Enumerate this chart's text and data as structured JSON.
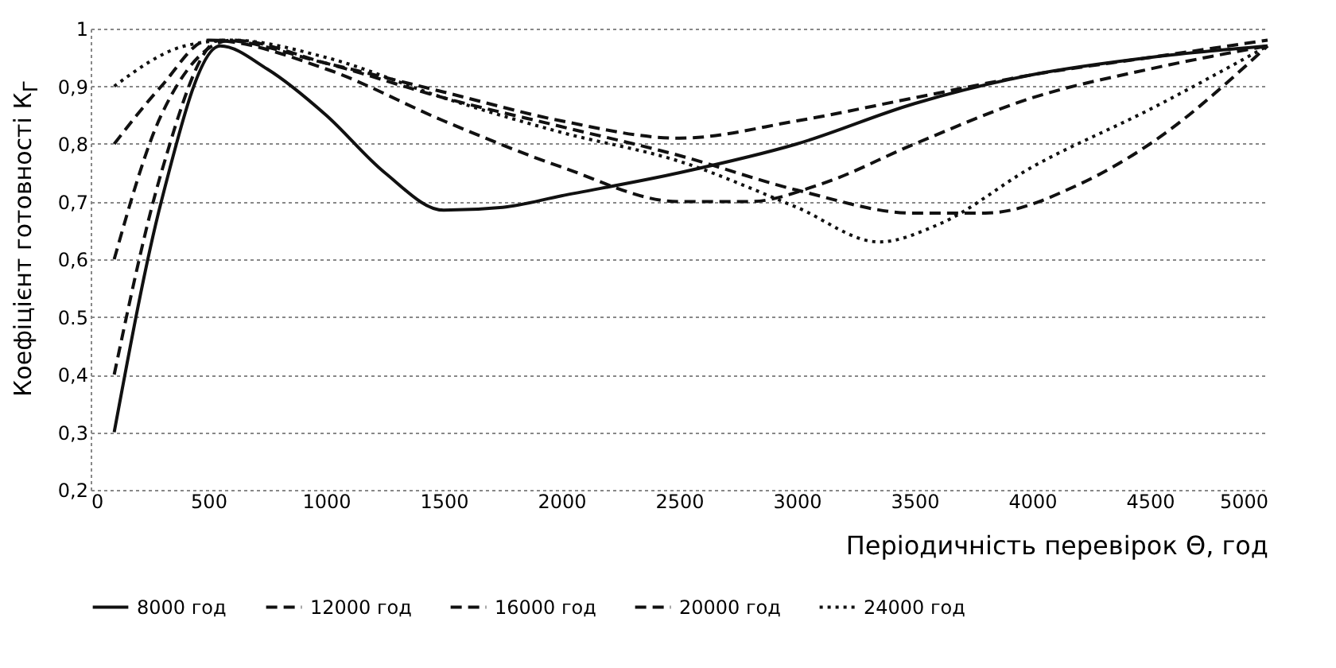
{
  "chart_data": {
    "type": "line",
    "xlabel": "Періодичність перевірок Θ, год",
    "ylabel": "Коефіцієнт готовності К$_{Г}$",
    "xlim": [
      0,
      5000
    ],
    "xticks": [
      0,
      500,
      1000,
      1500,
      2000,
      2500,
      3000,
      3500,
      4000,
      4500,
      5000
    ],
    "ylim": [
      0.2,
      1
    ],
    "yticks": [
      {
        "value": 0.2,
        "label": "0,2"
      },
      {
        "value": 0.3,
        "label": "0,3"
      },
      {
        "value": 0.4,
        "label": "0,4"
      },
      {
        "value": 0.5,
        "label": "0.5"
      },
      {
        "value": 0.6,
        "label": "0,6"
      },
      {
        "value": 0.7,
        "label": "0,7"
      },
      {
        "value": 0.8,
        "label": "0,8"
      },
      {
        "value": 0.9,
        "label": "0,9"
      },
      {
        "value": 1,
        "label": "1"
      }
    ],
    "grid": "y",
    "legend": "bottom",
    "marker": "none",
    "series": [
      {
        "name": "8000 год",
        "color": "#111111",
        "line_style": "solid",
        "x": [
          100,
          300,
          550,
          750,
          1000,
          1250,
          1500,
          1750,
          2000,
          2500,
          3000,
          3500,
          4000,
          4500,
          5000
        ],
        "values": [
          0.3,
          0.7,
          0.97,
          0.93,
          0.85,
          0.75,
          0.685,
          0.69,
          0.71,
          0.75,
          0.8,
          0.87,
          0.92,
          0.95,
          0.97
        ]
      },
      {
        "name": "12000 год",
        "color": "#111111",
        "line_style": "dashed",
        "x": [
          100,
          300,
          550,
          1000,
          1500,
          2000,
          2500,
          3000,
          3500,
          4000,
          4500,
          5000
        ],
        "values": [
          0.4,
          0.75,
          0.98,
          0.94,
          0.89,
          0.84,
          0.81,
          0.84,
          0.88,
          0.92,
          0.95,
          0.98
        ]
      },
      {
        "name": "16000 год",
        "color": "#111111",
        "line_style": "dashed",
        "x": [
          100,
          300,
          600,
          1000,
          1500,
          2000,
          2500,
          3000,
          3500,
          3800,
          4200,
          4500,
          5000
        ],
        "values": [
          0.6,
          0.85,
          0.98,
          0.94,
          0.88,
          0.83,
          0.78,
          0.72,
          0.68,
          0.68,
          0.73,
          0.8,
          0.97
        ]
      },
      {
        "name": "20000 год",
        "color": "#111111",
        "line_style": "dashed",
        "x": [
          100,
          300,
          500,
          1000,
          1500,
          2000,
          2500,
          2800,
          3100,
          3500,
          4000,
          4500,
          5000
        ],
        "values": [
          0.8,
          0.9,
          0.98,
          0.93,
          0.84,
          0.76,
          0.7,
          0.7,
          0.73,
          0.8,
          0.88,
          0.93,
          0.97
        ]
      },
      {
        "name": "24000 год",
        "color": "#111111",
        "line_style": "dotted",
        "x": [
          100,
          400,
          600,
          1000,
          1500,
          2000,
          2500,
          3000,
          3350,
          3600,
          4000,
          4500,
          5000
        ],
        "values": [
          0.9,
          0.97,
          0.98,
          0.95,
          0.88,
          0.82,
          0.77,
          0.69,
          0.63,
          0.66,
          0.76,
          0.86,
          0.97
        ]
      }
    ]
  }
}
